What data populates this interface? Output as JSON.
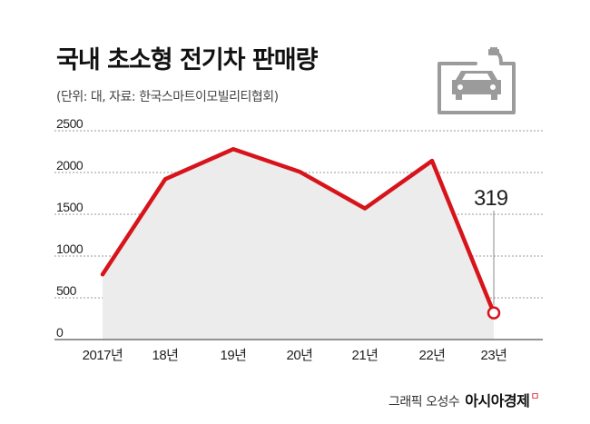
{
  "header": {
    "title": "국내 초소형 전기차 판매량",
    "subtitle": "(단위: 대, 자료: 한국스마트이모빌리티협회)"
  },
  "icon": "ev-charging-car-icon",
  "credit": {
    "text": "그래픽 오성수",
    "brand": "아시아경제",
    "mark": "ㅁ"
  },
  "colors": {
    "line": "#d7141b",
    "area": "#ececec",
    "grid": "#9a9a9a",
    "text": "#222222",
    "icon": "#9b9b9b"
  },
  "chart_data": {
    "type": "area",
    "categories": [
      "2017년",
      "18년",
      "19년",
      "20년",
      "21년",
      "22년",
      "23년"
    ],
    "series": [
      {
        "values": [
          780,
          1920,
          2280,
          2010,
          1570,
          2140,
          319
        ]
      }
    ],
    "ylim": [
      0,
      2500
    ],
    "yticks": [
      0,
      500,
      1000,
      1500,
      2000,
      2500
    ],
    "grid": true,
    "annotations": [
      {
        "category": "23년",
        "label": "319"
      }
    ]
  }
}
